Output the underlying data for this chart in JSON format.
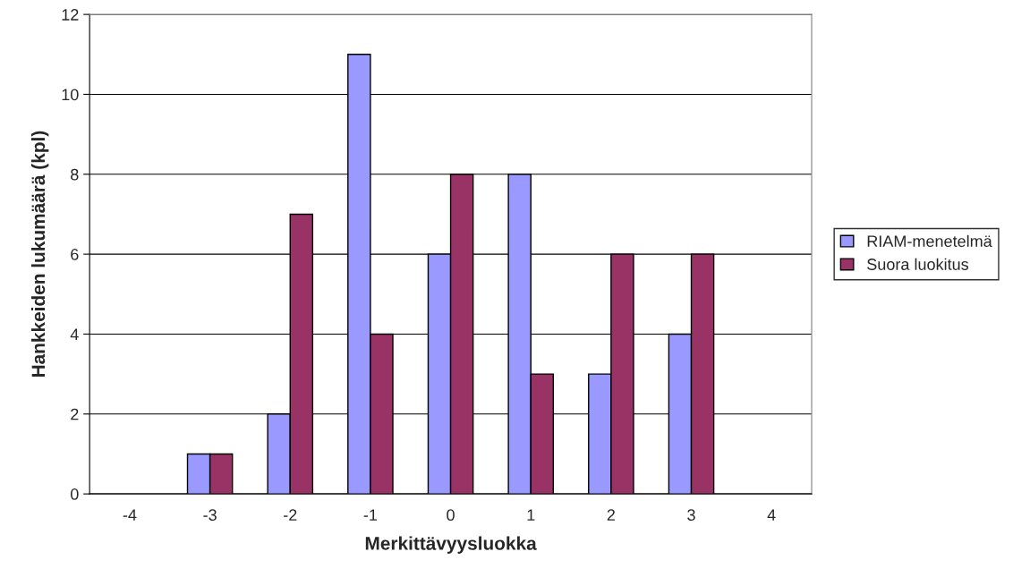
{
  "chart_data": {
    "type": "bar",
    "xlabel": "Merkittävyysluokka",
    "ylabel": "Hankkeiden lukumäärä (kpl)",
    "categories": [
      "-4",
      "-3",
      "-2",
      "-1",
      "0",
      "1",
      "2",
      "3",
      "4"
    ],
    "series": [
      {
        "name": "RIAM-menetelmä",
        "color": "#9999ff",
        "values": [
          0,
          1,
          2,
          11,
          6,
          8,
          3,
          4,
          0
        ]
      },
      {
        "name": "Suora luokitus",
        "color": "#993366",
        "values": [
          0,
          1,
          7,
          4,
          8,
          3,
          6,
          6,
          0
        ]
      }
    ],
    "ylim": [
      0,
      12
    ],
    "yticks": [
      0,
      2,
      4,
      6,
      8,
      10,
      12
    ],
    "grid": "y",
    "legend": "right"
  }
}
